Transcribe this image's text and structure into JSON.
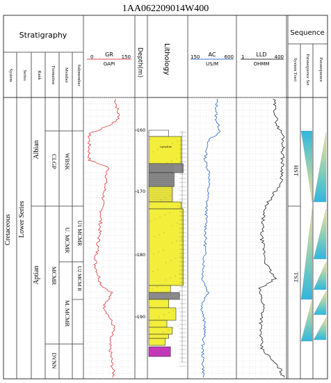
{
  "title": "1AA062209014W400",
  "headers": {
    "stratigraphy": "Stratigraphy",
    "depth": "Depth(m)",
    "lithology": "Lithology",
    "sequence": "Sequence"
  },
  "strat_columns": [
    "System",
    "Series",
    "Rank",
    "Formation",
    "Member",
    "Submember"
  ],
  "seq_columns": [
    "System Tract",
    "Parasequence Set",
    "Parasequence"
  ],
  "logs": {
    "gr": {
      "name": "GR",
      "unit": "GAPI",
      "min": "0",
      "max": "150",
      "color": "#e0484a"
    },
    "ac": {
      "name": "AC",
      "unit": "US/M",
      "min": "150",
      "max": "600",
      "color": "#3a73c8"
    },
    "lld": {
      "name": "LLD",
      "unit": "OHMM",
      "min": "1",
      "max": "400",
      "color": "#333333"
    }
  },
  "depth_ticks": [
    "160",
    "170",
    "180",
    "190"
  ],
  "stratigraphy": {
    "system": "Cretaceous",
    "series": "Lower Series",
    "ranks": [
      "Albian",
      "Aptian"
    ],
    "formations": [
      "CLGP",
      "MCMR",
      "DVNN"
    ],
    "members": [
      "WBSK",
      "U. MCMR",
      "M. MCMR"
    ],
    "submembers": [
      "U1 MCMR",
      "U2 MCM R"
    ]
  },
  "system_tracts": [
    "HST",
    "TST"
  ],
  "lithology_label": "Lumpsum",
  "colors": {
    "sand": "#f2ee3a",
    "shale": "#8a8a8a",
    "limestone": "#ffffff",
    "evaporite": "#c23ab8",
    "seq_cyan": "#2fb7de",
    "seq_yellow": "#f4e78a"
  }
}
